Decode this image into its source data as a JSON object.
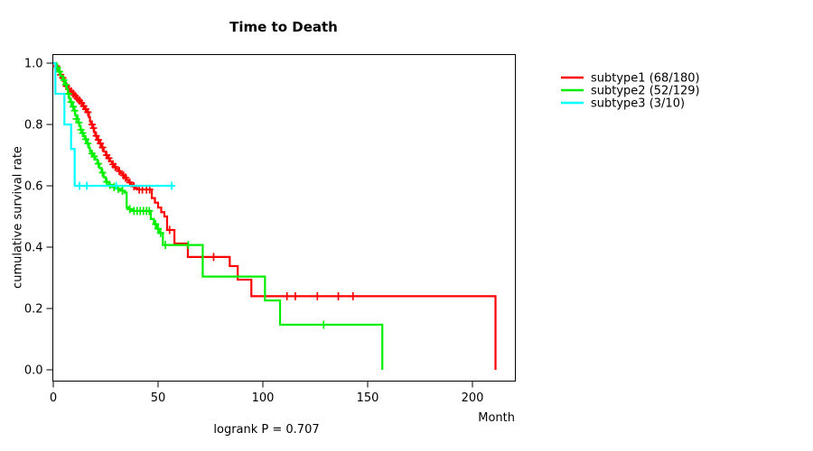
{
  "chart_data": {
    "type": "line",
    "variant": "kaplan-meier-step-curves",
    "title": "Time to Death",
    "ylabel": "cumulative survival rate",
    "xlabel": "Month",
    "footnote": "logrank P = 0.707",
    "xlim": [
      0,
      220
    ],
    "ylim": [
      0,
      1.0
    ],
    "grid": "off",
    "legend_position": "right-outside",
    "x_ticks": [
      {
        "label": "0",
        "m": 0
      },
      {
        "label": "50",
        "m": 50
      },
      {
        "label": "100",
        "m": 100
      },
      {
        "label": "150",
        "m": 150
      },
      {
        "label": "200",
        "m": 200
      }
    ],
    "y_ticks": [
      {
        "label": "0.0",
        "v": 0.0
      },
      {
        "label": "0.2",
        "v": 0.2
      },
      {
        "label": "0.4",
        "v": 0.4
      },
      {
        "label": "0.6",
        "v": 0.6
      },
      {
        "label": "0.8",
        "v": 0.8
      },
      {
        "label": "1.0",
        "v": 1.0
      }
    ],
    "series": [
      {
        "name": "subtype1 (68/180)",
        "color": "#FF0000",
        "steps": [
          [
            0,
            1.0
          ],
          [
            1,
            0.99
          ],
          [
            2,
            0.975
          ],
          [
            3,
            0.962
          ],
          [
            4,
            0.952
          ],
          [
            5,
            0.944
          ],
          [
            5.5,
            0.934
          ],
          [
            6,
            0.925
          ],
          [
            7,
            0.916
          ],
          [
            8,
            0.908
          ],
          [
            9,
            0.9
          ],
          [
            10,
            0.893
          ],
          [
            11,
            0.885
          ],
          [
            12,
            0.878
          ],
          [
            13,
            0.87
          ],
          [
            14,
            0.86
          ],
          [
            15,
            0.85
          ],
          [
            16,
            0.84
          ],
          [
            17,
            0.824
          ],
          [
            17.5,
            0.81
          ],
          [
            18,
            0.8
          ],
          [
            19,
            0.788
          ],
          [
            19.5,
            0.775
          ],
          [
            20,
            0.763
          ],
          [
            21,
            0.75
          ],
          [
            22,
            0.738
          ],
          [
            23,
            0.725
          ],
          [
            24,
            0.712
          ],
          [
            25,
            0.7
          ],
          [
            26,
            0.69
          ],
          [
            27,
            0.68
          ],
          [
            28,
            0.67
          ],
          [
            29,
            0.662
          ],
          [
            30,
            0.655
          ],
          [
            31,
            0.648
          ],
          [
            32,
            0.641
          ],
          [
            33,
            0.634
          ],
          [
            34,
            0.627
          ],
          [
            35,
            0.619
          ],
          [
            36,
            0.611
          ],
          [
            37,
            0.604
          ],
          [
            38,
            0.598
          ],
          [
            39,
            0.592
          ],
          [
            40,
            0.588
          ],
          [
            47,
            0.56
          ],
          [
            48.5,
            0.545
          ],
          [
            50,
            0.529
          ],
          [
            51.5,
            0.514
          ],
          [
            53,
            0.5
          ],
          [
            54.3,
            0.456
          ],
          [
            57.8,
            0.412
          ],
          [
            64.2,
            0.368
          ],
          [
            84.2,
            0.338
          ],
          [
            88,
            0.294
          ],
          [
            94.5,
            0.24
          ],
          [
            211,
            0.0
          ]
        ],
        "censors": [
          [
            1.5,
            0.99
          ],
          [
            3.5,
            0.962
          ],
          [
            4.5,
            0.952
          ],
          [
            6.3,
            0.925
          ],
          [
            7.4,
            0.916
          ],
          [
            8.5,
            0.908
          ],
          [
            9.5,
            0.9
          ],
          [
            10.5,
            0.893
          ],
          [
            11.5,
            0.885
          ],
          [
            12.5,
            0.878
          ],
          [
            13.5,
            0.87
          ],
          [
            14.5,
            0.86
          ],
          [
            15.5,
            0.85
          ],
          [
            16.5,
            0.84
          ],
          [
            18.5,
            0.8
          ],
          [
            19.2,
            0.788
          ],
          [
            20.5,
            0.763
          ],
          [
            21.5,
            0.75
          ],
          [
            22.5,
            0.738
          ],
          [
            23.5,
            0.725
          ],
          [
            25.5,
            0.7
          ],
          [
            26.5,
            0.69
          ],
          [
            28.5,
            0.67
          ],
          [
            29.5,
            0.662
          ],
          [
            31.5,
            0.648
          ],
          [
            33.5,
            0.634
          ],
          [
            34.5,
            0.627
          ],
          [
            36.5,
            0.611
          ],
          [
            38.5,
            0.598
          ],
          [
            41,
            0.588
          ],
          [
            42.5,
            0.588
          ],
          [
            44.5,
            0.588
          ],
          [
            46,
            0.588
          ],
          [
            55.5,
            0.456
          ],
          [
            76.5,
            0.368
          ],
          [
            111.5,
            0.24
          ],
          [
            115.5,
            0.24
          ],
          [
            126,
            0.24
          ],
          [
            136,
            0.24
          ],
          [
            143,
            0.24
          ]
        ]
      },
      {
        "name": "subtype2 (52/129)",
        "color": "#00EE00",
        "steps": [
          [
            0,
            1.0
          ],
          [
            1.5,
            0.985
          ],
          [
            2.5,
            0.972
          ],
          [
            3.5,
            0.958
          ],
          [
            4.5,
            0.945
          ],
          [
            5.5,
            0.93
          ],
          [
            6.5,
            0.915
          ],
          [
            7,
            0.9
          ],
          [
            7.5,
            0.886
          ],
          [
            8,
            0.873
          ],
          [
            9,
            0.858
          ],
          [
            10,
            0.845
          ],
          [
            10.5,
            0.83
          ],
          [
            11.5,
            0.818
          ],
          [
            12,
            0.806
          ],
          [
            12.5,
            0.795
          ],
          [
            13,
            0.783
          ],
          [
            13.5,
            0.772
          ],
          [
            14.5,
            0.762
          ],
          [
            15,
            0.752
          ],
          [
            16,
            0.738
          ],
          [
            17,
            0.724
          ],
          [
            17.5,
            0.713
          ],
          [
            18,
            0.705
          ],
          [
            19,
            0.696
          ],
          [
            20,
            0.686
          ],
          [
            21,
            0.672
          ],
          [
            22,
            0.658
          ],
          [
            23,
            0.643
          ],
          [
            24,
            0.628
          ],
          [
            25,
            0.613
          ],
          [
            26.5,
            0.603
          ],
          [
            28,
            0.596
          ],
          [
            30,
            0.59
          ],
          [
            32,
            0.584
          ],
          [
            34,
            0.578
          ],
          [
            35,
            0.53
          ],
          [
            36,
            0.524
          ],
          [
            37.5,
            0.518
          ],
          [
            46.5,
            0.492
          ],
          [
            48,
            0.475
          ],
          [
            49.5,
            0.46
          ],
          [
            50.5,
            0.446
          ],
          [
            52.3,
            0.407
          ],
          [
            71.3,
            0.304
          ],
          [
            101,
            0.226
          ],
          [
            108.2,
            0.147
          ],
          [
            157,
            0.0
          ]
        ],
        "censors": [
          [
            2,
            0.985
          ],
          [
            3,
            0.972
          ],
          [
            5,
            0.945
          ],
          [
            6,
            0.93
          ],
          [
            7.2,
            0.9
          ],
          [
            8.5,
            0.873
          ],
          [
            9.5,
            0.858
          ],
          [
            10.2,
            0.845
          ],
          [
            11,
            0.818
          ],
          [
            12.2,
            0.806
          ],
          [
            13.2,
            0.783
          ],
          [
            14,
            0.772
          ],
          [
            15.5,
            0.752
          ],
          [
            16.5,
            0.738
          ],
          [
            18.5,
            0.705
          ],
          [
            19.5,
            0.696
          ],
          [
            21.5,
            0.672
          ],
          [
            23.5,
            0.643
          ],
          [
            25.5,
            0.613
          ],
          [
            27,
            0.603
          ],
          [
            29,
            0.596
          ],
          [
            31,
            0.59
          ],
          [
            33,
            0.584
          ],
          [
            36.5,
            0.524
          ],
          [
            38.5,
            0.518
          ],
          [
            40,
            0.518
          ],
          [
            41.5,
            0.518
          ],
          [
            43,
            0.518
          ],
          [
            44.5,
            0.518
          ],
          [
            45.8,
            0.518
          ],
          [
            48.8,
            0.475
          ],
          [
            50,
            0.46
          ],
          [
            51.2,
            0.446
          ],
          [
            53.5,
            0.407
          ],
          [
            64.4,
            0.407
          ],
          [
            129,
            0.147
          ]
        ]
      },
      {
        "name": "subtype3 (3/10)",
        "color": "#00FFFF",
        "steps": [
          [
            0,
            1.0
          ],
          [
            1,
            0.9
          ],
          [
            5.3,
            0.8
          ],
          [
            8.5,
            0.72
          ],
          [
            10.2,
            0.6
          ]
        ],
        "end_month": 57.5,
        "censors": [
          [
            12.5,
            0.6
          ],
          [
            16,
            0.6
          ],
          [
            30,
            0.6
          ],
          [
            56.5,
            0.6
          ]
        ]
      }
    ]
  }
}
